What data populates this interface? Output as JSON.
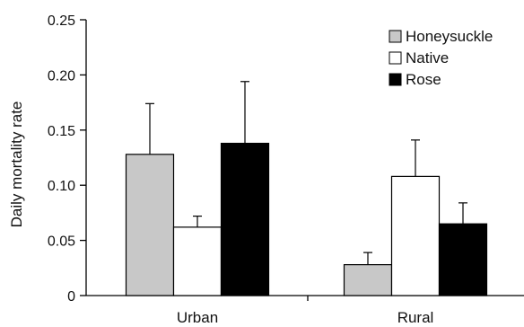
{
  "chart_data": {
    "type": "bar",
    "categories": [
      "Urban",
      "Rural"
    ],
    "series": [
      {
        "name": "Honeysuckle",
        "values": [
          0.128,
          0.028
        ],
        "errors": [
          0.046,
          0.011
        ],
        "color": "#c8c8c8"
      },
      {
        "name": "Native",
        "values": [
          0.062,
          0.108
        ],
        "errors": [
          0.01,
          0.033
        ],
        "color": "#ffffff"
      },
      {
        "name": "Rose",
        "values": [
          0.138,
          0.065
        ],
        "errors": [
          0.056,
          0.019
        ],
        "color": "#000000"
      }
    ],
    "ylabel": "Daily mortality rate",
    "xlabel": "",
    "ylim": [
      0,
      0.25
    ],
    "yticks": [
      "0",
      "0.05",
      "0.10",
      "0.15",
      "0.20",
      "0.25"
    ],
    "grid": false,
    "legend": "top-right"
  }
}
